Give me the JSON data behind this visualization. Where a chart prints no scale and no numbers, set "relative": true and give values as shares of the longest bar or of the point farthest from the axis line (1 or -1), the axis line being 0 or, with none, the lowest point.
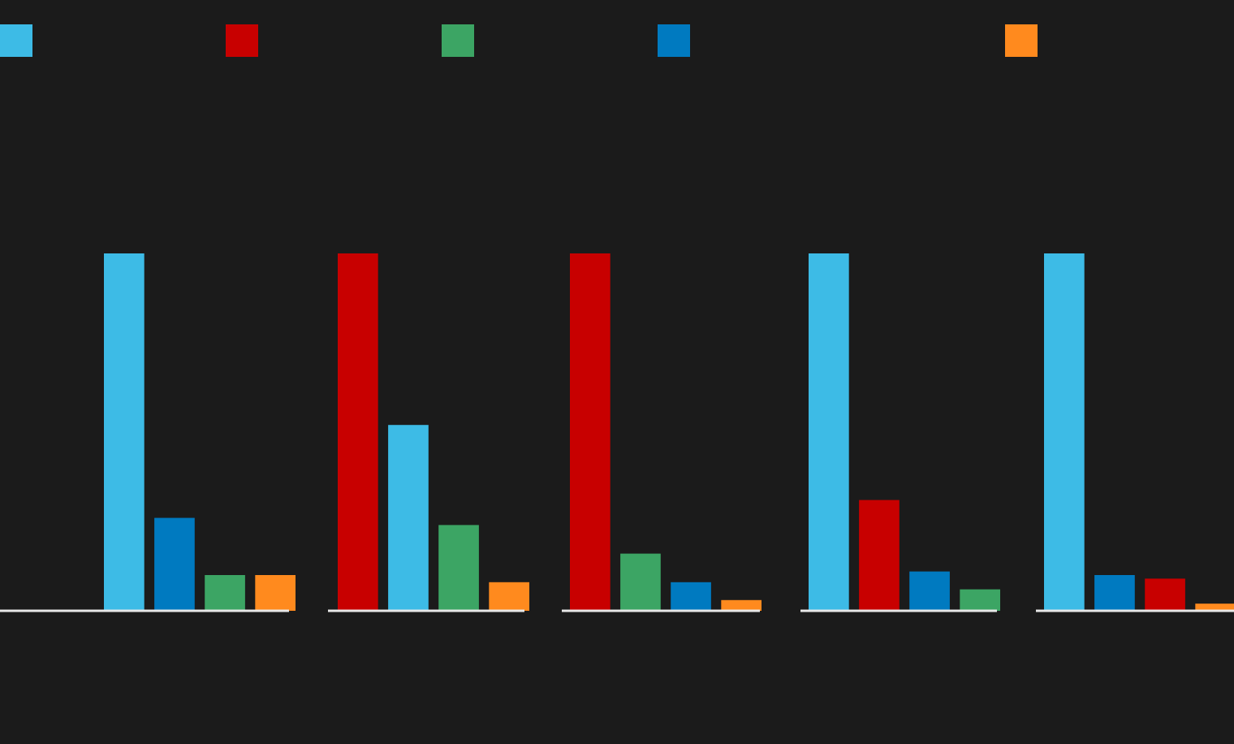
{
  "chart_data": [
    {
      "type": "bar",
      "relative": true,
      "categories": [
        null,
        null,
        null,
        null
      ],
      "values": [
        1,
        0.26,
        0.1,
        0.1
      ],
      "colors": [
        "#3dbbe6",
        "#007ac0",
        "#3ca564",
        "#ff8a1e"
      ]
    },
    {
      "type": "bar",
      "relative": true,
      "categories": [
        null,
        null,
        null,
        null
      ],
      "values": [
        1,
        0.52,
        0.24,
        0.08
      ],
      "colors": [
        "#c80000",
        "#3dbbe6",
        "#3ca564",
        "#ff8a1e"
      ]
    },
    {
      "type": "bar",
      "relative": true,
      "categories": [
        null,
        null,
        null,
        null
      ],
      "values": [
        1,
        0.16,
        0.08,
        0.03
      ],
      "colors": [
        "#c80000",
        "#3ca564",
        "#007ac0",
        "#ff8a1e"
      ]
    },
    {
      "type": "bar",
      "relative": true,
      "categories": [
        null,
        null,
        null,
        null
      ],
      "values": [
        1,
        0.31,
        0.11,
        0.06
      ],
      "colors": [
        "#3dbbe6",
        "#c80000",
        "#007ac0",
        "#3ca564"
      ]
    },
    {
      "type": "bar",
      "relative": true,
      "categories": [
        null,
        null,
        null,
        null
      ],
      "values": [
        1,
        0.1,
        0.09,
        0.02
      ],
      "colors": [
        "#3dbbe6",
        "#007ac0",
        "#c80000",
        "#ff8a1e"
      ]
    }
  ]
}
